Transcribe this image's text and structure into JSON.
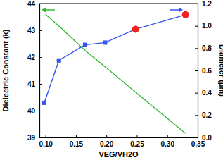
{
  "chart_data": {
    "type": "line",
    "x_label": "VEG/VH2O",
    "y_label": "Dielectric Constant (k)",
    "y2_label": "Diameter (μm)",
    "xlim": [
      0.09,
      0.35
    ],
    "xticks": [
      {
        "value": 0.1,
        "label": "0.10"
      },
      0.15,
      {
        "value": 0.2,
        "label": "0.20"
      },
      0.25,
      {
        "value": 0.3,
        "label": "0.30"
      },
      0.35
    ],
    "ylim": [
      39,
      44
    ],
    "yticks": [
      39,
      40,
      41,
      42,
      43,
      44
    ],
    "y2lim": [
      0,
      1.2
    ],
    "y2ticks": [
      {
        "value": 0,
        "label": "0.0"
      },
      0.2,
      0.4,
      0.6,
      0.8,
      {
        "value": 1,
        "label": "1.0"
      },
      1.2
    ],
    "series": [
      {
        "color": "#33bb33",
        "axis": "y",
        "marker": "none",
        "line_style": "solid",
        "x": [
          0.1,
          0.125,
          0.165,
          0.2,
          0.25,
          0.33
        ],
        "values": [
          43.6,
          43.1,
          42.25,
          41.6,
          40.65,
          39.15
        ]
      },
      {
        "color": "#3355ee",
        "axis": "y2",
        "marker": "square",
        "line_style": "solid",
        "x": [
          0.098,
          0.122,
          0.165,
          0.198,
          0.248,
          0.33
        ],
        "values": [
          0.31,
          0.69,
          0.83,
          0.85,
          0.97,
          1.1
        ]
      },
      {
        "color": "#ee2222",
        "axis": "y2",
        "marker": "circle",
        "line_style": "none",
        "x": [
          0.248,
          0.33
        ],
        "values": [
          0.97,
          1.1
        ]
      }
    ]
  }
}
